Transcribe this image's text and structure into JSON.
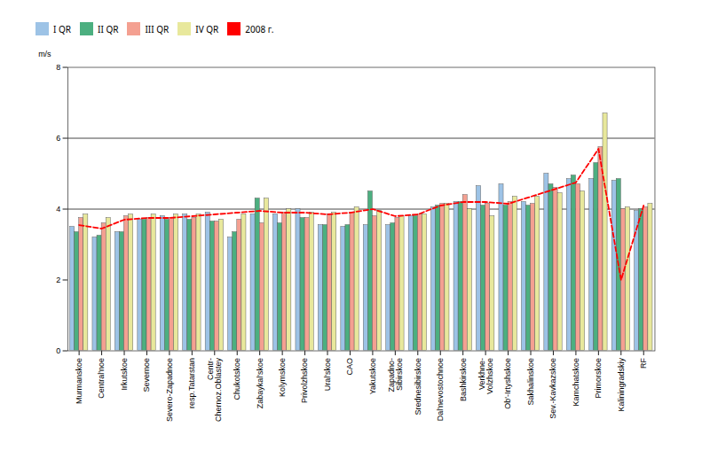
{
  "chart_data": {
    "type": "bar",
    "ylabel": "m/s",
    "categories": [
      "Murmanskoe",
      "Central'noe",
      "Irkutskoe",
      "Severnoe",
      "Severo-Zapadnoe",
      "resp.Tatarstan",
      "Centr-\nChernoz.Oblastey",
      "Chukotskoe",
      "Zabaykal'skoe",
      "Kolymskoe",
      "Privolzhskoe",
      "Ural'skoe",
      "CAO",
      "Yakutskoe",
      "Zapadno-\nSibirskoe",
      "Srednesibirskoe",
      "Dal'nevostochnoe",
      "Bashkirskoe",
      "Verkhne-\nVolzhskoe",
      "Ob'-Irtyshskoe",
      "Sakhalinskoe",
      "Sev.-Kavkazskoe",
      "Kamchatskoe",
      "Primorskoe",
      "Kaliningradskiy",
      "RF"
    ],
    "series": [
      {
        "name": "I QR",
        "color": "#9DC3E6",
        "values": [
          3.5,
          3.2,
          3.35,
          3.7,
          3.8,
          3.85,
          3.9,
          3.2,
          3.85,
          3.85,
          4.0,
          3.55,
          3.5,
          3.55,
          3.55,
          3.8,
          4.05,
          4.2,
          4.65,
          4.7,
          4.2,
          5.0,
          4.85,
          4.85,
          4.8,
          3.95
        ]
      },
      {
        "name": "II QR",
        "color": "#4CAF80",
        "values": [
          3.35,
          3.25,
          3.35,
          3.7,
          3.7,
          3.7,
          3.65,
          3.35,
          4.3,
          3.6,
          3.75,
          3.55,
          3.55,
          4.5,
          3.6,
          3.8,
          4.1,
          4.2,
          4.1,
          4.1,
          4.1,
          4.7,
          4.95,
          5.3,
          4.85,
          4.0
        ]
      },
      {
        "name": "III QR",
        "color": "#F4A091",
        "values": [
          3.75,
          3.6,
          3.8,
          3.75,
          3.75,
          3.75,
          3.65,
          3.7,
          3.6,
          3.9,
          3.75,
          3.85,
          3.9,
          3.8,
          3.75,
          3.85,
          4.15,
          4.4,
          4.15,
          4.2,
          4.15,
          4.6,
          4.7,
          5.75,
          4.0,
          4.05
        ]
      },
      {
        "name": "IV QR",
        "color": "#E8E89C",
        "values": [
          3.85,
          3.75,
          3.85,
          3.85,
          3.85,
          3.85,
          3.7,
          3.85,
          4.3,
          4.0,
          3.9,
          3.9,
          4.05,
          3.95,
          3.8,
          3.85,
          4.15,
          4.0,
          3.8,
          4.35,
          4.35,
          4.45,
          4.5,
          6.7,
          4.05,
          4.15
        ]
      },
      {
        "name": "2008 г.",
        "color": "#FF0000",
        "type": "line",
        "line_style": "dashed",
        "values": [
          3.55,
          3.45,
          3.7,
          3.75,
          3.75,
          3.8,
          3.85,
          3.9,
          3.95,
          3.9,
          3.9,
          3.85,
          3.9,
          4.0,
          3.8,
          3.85,
          4.1,
          4.2,
          4.2,
          4.15,
          4.35,
          4.55,
          4.75,
          5.7,
          2.0,
          4.1
        ]
      }
    ],
    "hlines": [
      4.0,
      6.0
    ],
    "ylim": [
      0,
      8
    ],
    "yticks": [
      0,
      2,
      4,
      6,
      8
    ],
    "grid": false,
    "legend": "upper left"
  }
}
